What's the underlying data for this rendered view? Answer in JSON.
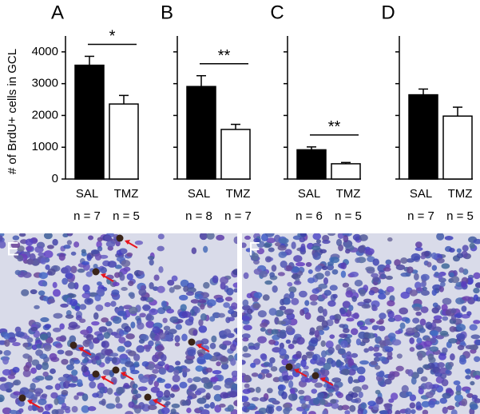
{
  "chart_data": [
    {
      "type": "bar",
      "title": "A",
      "ylabel": "# of BrdU+ cells in GCL",
      "categories": [
        "SAL",
        "TMZ"
      ],
      "values": [
        3580,
        2360
      ],
      "errors": [
        280,
        270
      ],
      "colors": [
        "#000000",
        "#ffffff"
      ],
      "n_labels": [
        "n = 7",
        "n = 5"
      ],
      "significance": "*",
      "ylim": [
        0,
        4500
      ],
      "yticks": [
        0,
        1000,
        2000,
        3000,
        4000
      ]
    },
    {
      "type": "bar",
      "title": "B",
      "categories": [
        "SAL",
        "TMZ"
      ],
      "values": [
        2910,
        1560
      ],
      "errors": [
        340,
        160
      ],
      "colors": [
        "#000000",
        "#ffffff"
      ],
      "n_labels": [
        "n = 8",
        "n = 7"
      ],
      "significance": "**",
      "ylim": [
        0,
        4500
      ]
    },
    {
      "type": "bar",
      "title": "C",
      "categories": [
        "SAL",
        "TMZ"
      ],
      "values": [
        920,
        480
      ],
      "errors": [
        90,
        40
      ],
      "colors": [
        "#000000",
        "#ffffff"
      ],
      "n_labels": [
        "n = 6",
        "n = 5"
      ],
      "significance": "**",
      "ylim": [
        0,
        4500
      ]
    },
    {
      "type": "bar",
      "title": "D",
      "categories": [
        "SAL",
        "TMZ"
      ],
      "values": [
        2650,
        1980
      ],
      "errors": [
        180,
        280
      ],
      "colors": [
        "#000000",
        "#ffffff"
      ],
      "n_labels": [
        "n = 7",
        "n = 5"
      ],
      "ylim": [
        0,
        4500
      ]
    }
  ],
  "images": [
    {
      "label": "E"
    },
    {
      "label": "F"
    }
  ]
}
